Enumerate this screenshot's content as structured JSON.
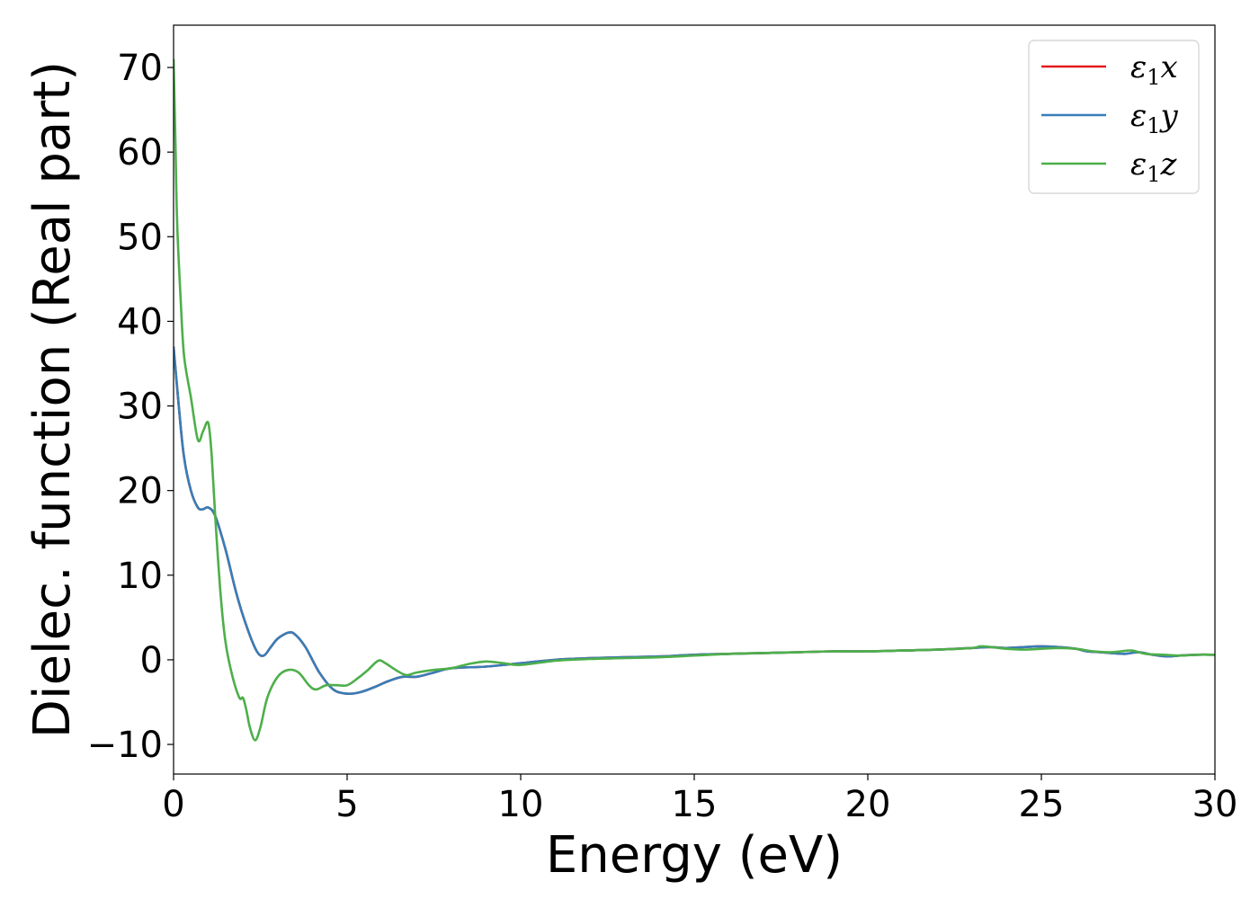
{
  "chart_data": {
    "type": "line",
    "xlabel": "Energy (eV)",
    "ylabel": "Dielec. function (Real part)",
    "xlim": [
      0,
      30
    ],
    "ylim": [
      -13.5,
      75
    ],
    "xticks": [
      0,
      5,
      10,
      15,
      20,
      25,
      30
    ],
    "xtick_labels": [
      "0",
      "5",
      "10",
      "15",
      "20",
      "25",
      "30"
    ],
    "yticks": [
      -10,
      0,
      10,
      20,
      30,
      40,
      50,
      60,
      70
    ],
    "ytick_labels": [
      "−10",
      "0",
      "10",
      "20",
      "30",
      "40",
      "50",
      "60",
      "70"
    ],
    "grid": false,
    "legend_position": "top-right",
    "series": [
      {
        "name": "ε₁x",
        "legend": {
          "base": "ε",
          "sub": "1",
          "var": "x"
        },
        "color": "#e41a1c",
        "x": [
          0,
          0.15,
          0.3,
          0.5,
          0.7,
          0.85,
          1.0,
          1.2,
          1.5,
          1.8,
          2.1,
          2.4,
          2.6,
          2.8,
          3.0,
          3.3,
          3.5,
          3.8,
          4.2,
          4.6,
          5.0,
          5.4,
          5.8,
          6.2,
          6.6,
          7.0,
          7.5,
          8.0,
          9.0,
          10.0,
          11.0,
          12.0,
          13.0,
          14.0,
          15.0,
          16.0,
          17.0,
          18.0,
          19.0,
          20.0,
          21.0,
          22.0,
          23.0,
          23.5,
          24.0,
          24.5,
          25.0,
          25.5,
          26.0,
          26.3,
          26.7,
          27.0,
          27.4,
          27.8,
          28.2,
          28.6,
          29.0,
          29.5,
          30.0
        ],
        "y": [
          37,
          30,
          24,
          20,
          18,
          17.8,
          18,
          17,
          13,
          8,
          4,
          1,
          0.5,
          1.5,
          2.5,
          3.2,
          3,
          1.5,
          -1.5,
          -3.5,
          -4,
          -3.8,
          -3.2,
          -2.5,
          -2,
          -2,
          -1.5,
          -1,
          -0.8,
          -0.4,
          0,
          0.2,
          0.3,
          0.4,
          0.6,
          0.7,
          0.8,
          0.9,
          1.0,
          1.0,
          1.1,
          1.2,
          1.4,
          1.5,
          1.4,
          1.5,
          1.6,
          1.5,
          1.3,
          1.0,
          0.9,
          0.8,
          0.7,
          0.9,
          0.6,
          0.4,
          0.5,
          0.6,
          0.6
        ]
      },
      {
        "name": "ε₁y",
        "legend": {
          "base": "ε",
          "sub": "1",
          "var": "y"
        },
        "color": "#377eb8",
        "x": [
          0,
          0.15,
          0.3,
          0.5,
          0.7,
          0.85,
          1.0,
          1.2,
          1.5,
          1.8,
          2.1,
          2.4,
          2.6,
          2.8,
          3.0,
          3.3,
          3.5,
          3.8,
          4.2,
          4.6,
          5.0,
          5.4,
          5.8,
          6.2,
          6.6,
          7.0,
          7.5,
          8.0,
          9.0,
          10.0,
          11.0,
          12.0,
          13.0,
          14.0,
          15.0,
          16.0,
          17.0,
          18.0,
          19.0,
          20.0,
          21.0,
          22.0,
          23.0,
          23.5,
          24.0,
          24.5,
          25.0,
          25.5,
          26.0,
          26.3,
          26.7,
          27.0,
          27.4,
          27.8,
          28.2,
          28.6,
          29.0,
          29.5,
          30.0
        ],
        "y": [
          37,
          30,
          24,
          20,
          18,
          17.8,
          18,
          17,
          13,
          8,
          4,
          1,
          0.5,
          1.5,
          2.5,
          3.2,
          3,
          1.5,
          -1.5,
          -3.5,
          -4,
          -3.8,
          -3.2,
          -2.5,
          -2,
          -2,
          -1.5,
          -1,
          -0.8,
          -0.4,
          0,
          0.2,
          0.3,
          0.4,
          0.6,
          0.7,
          0.8,
          0.9,
          1.0,
          1.0,
          1.1,
          1.2,
          1.4,
          1.5,
          1.4,
          1.5,
          1.6,
          1.5,
          1.3,
          1.0,
          0.9,
          0.8,
          0.7,
          0.9,
          0.6,
          0.4,
          0.5,
          0.6,
          0.6
        ]
      },
      {
        "name": "ε₁z",
        "legend": {
          "base": "ε",
          "sub": "1",
          "var": "z"
        },
        "color": "#4daf4a",
        "x": [
          0,
          0.05,
          0.1,
          0.2,
          0.3,
          0.5,
          0.7,
          0.85,
          1.0,
          1.1,
          1.2,
          1.35,
          1.5,
          1.7,
          1.9,
          2.0,
          2.1,
          2.2,
          2.35,
          2.5,
          2.7,
          3.0,
          3.3,
          3.6,
          3.9,
          4.1,
          4.4,
          4.7,
          5.0,
          5.3,
          5.6,
          5.9,
          6.1,
          6.4,
          6.7,
          7.0,
          7.5,
          8.0,
          8.5,
          9.0,
          9.5,
          10.0,
          11.0,
          12.0,
          13.0,
          14.0,
          15.0,
          16.0,
          17.0,
          18.0,
          19.0,
          20.0,
          21.0,
          22.0,
          23.0,
          23.3,
          24.0,
          24.5,
          25.0,
          25.5,
          26.0,
          26.5,
          27.0,
          27.3,
          27.6,
          28.0,
          28.5,
          29.0,
          29.5,
          30.0
        ],
        "y": [
          71,
          62,
          52,
          43,
          36,
          31,
          26,
          27,
          28,
          24,
          17,
          8,
          2,
          -2,
          -4.5,
          -4.5,
          -6,
          -8,
          -9.5,
          -8,
          -4.5,
          -2,
          -1.2,
          -1.5,
          -3,
          -3.5,
          -3,
          -3,
          -3,
          -2.2,
          -1.2,
          -0.1,
          -0.4,
          -1.2,
          -1.8,
          -1.5,
          -1.2,
          -1,
          -0.5,
          -0.2,
          -0.4,
          -0.6,
          -0.1,
          0.1,
          0.2,
          0.3,
          0.5,
          0.7,
          0.8,
          0.9,
          1.0,
          1.0,
          1.1,
          1.2,
          1.4,
          1.6,
          1.3,
          1.2,
          1.3,
          1.4,
          1.3,
          1.0,
          0.9,
          1.0,
          1.1,
          0.7,
          0.6,
          0.5,
          0.6,
          0.6
        ]
      }
    ]
  }
}
